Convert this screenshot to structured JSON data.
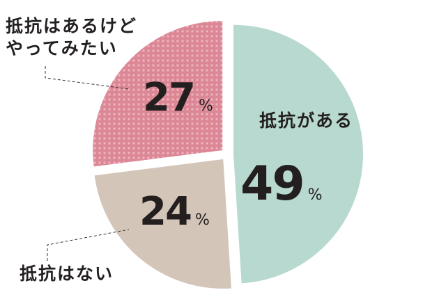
{
  "chart_data": {
    "type": "pie",
    "slices": [
      {
        "label": "抵抗がある",
        "value": 49,
        "color": "#b8d9cf"
      },
      {
        "label": "抵抗はない",
        "value": 24,
        "color": "#d4c5b9"
      },
      {
        "label": "抵抗はあるけどやってみたい",
        "label_lines": [
          "抵抗はあるけど",
          "やってみたい"
        ],
        "value": 27,
        "color": "#dc8796",
        "pattern": "dotted-grid"
      }
    ],
    "unit": "%"
  }
}
